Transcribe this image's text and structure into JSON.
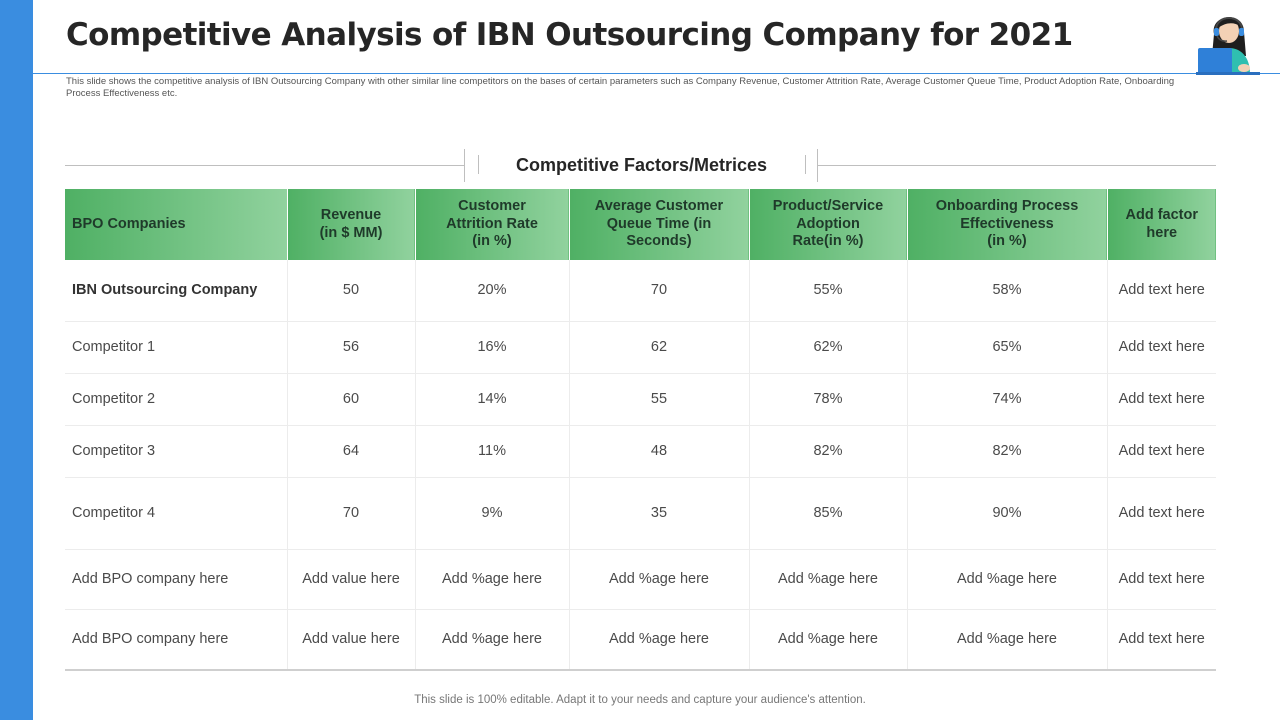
{
  "slide": {
    "title": "Competitive Analysis of IBN Outsourcing Company for 2021",
    "subtitle": "This slide shows the competitive analysis of IBN Outsourcing Company  with other similar line  competitors on the bases of certain parameters such as Company Revenue, Customer Attrition Rate,  Average Customer Queue Time,  Product Adoption Rate,  Onboarding Process Effectiveness etc.",
    "section_title": "Competitive Factors/Metrices",
    "footer": "This slide is 100% editable. Adapt it to your needs and capture your audience's attention."
  },
  "colors": {
    "accent_blue": "#3a8de0",
    "header_green_dark": "#4fb064",
    "header_green_light": "#91d29e"
  },
  "table": {
    "headers": [
      "BPO Companies",
      "Revenue\n(in $ MM)",
      "Customer\nAttrition Rate\n(in %)",
      "Average Customer\nQueue Time (in\nSeconds)",
      "Product/Service\nAdoption\nRate(in %)",
      "Onboarding Process\nEffectiveness\n(in %)",
      "Add factor\nhere"
    ],
    "rows": [
      [
        "IBN Outsourcing Company",
        "50",
        "20%",
        "70",
        "55%",
        "58%",
        "Add text here"
      ],
      [
        "Competitor 1",
        "56",
        "16%",
        "62",
        "62%",
        "65%",
        "Add text here"
      ],
      [
        "Competitor 2",
        "60",
        "14%",
        "55",
        "78%",
        "74%",
        "Add text here"
      ],
      [
        "Competitor 3",
        "64",
        "11%",
        "48",
        "82%",
        "82%",
        "Add text here"
      ],
      [
        "Competitor 4",
        "70",
        "9%",
        "35",
        "85%",
        "90%",
        "Add text here"
      ],
      [
        "Add BPO company here",
        "Add value here",
        "Add %age here",
        "Add %age here",
        "Add %age here",
        "Add %age here",
        "Add text here"
      ],
      [
        "Add BPO company here",
        "Add value here",
        "Add %age here",
        "Add %age here",
        "Add %age here",
        "Add %age here",
        "Add text here"
      ]
    ]
  },
  "icons": {
    "avatar": "customer-support-agent-icon"
  }
}
